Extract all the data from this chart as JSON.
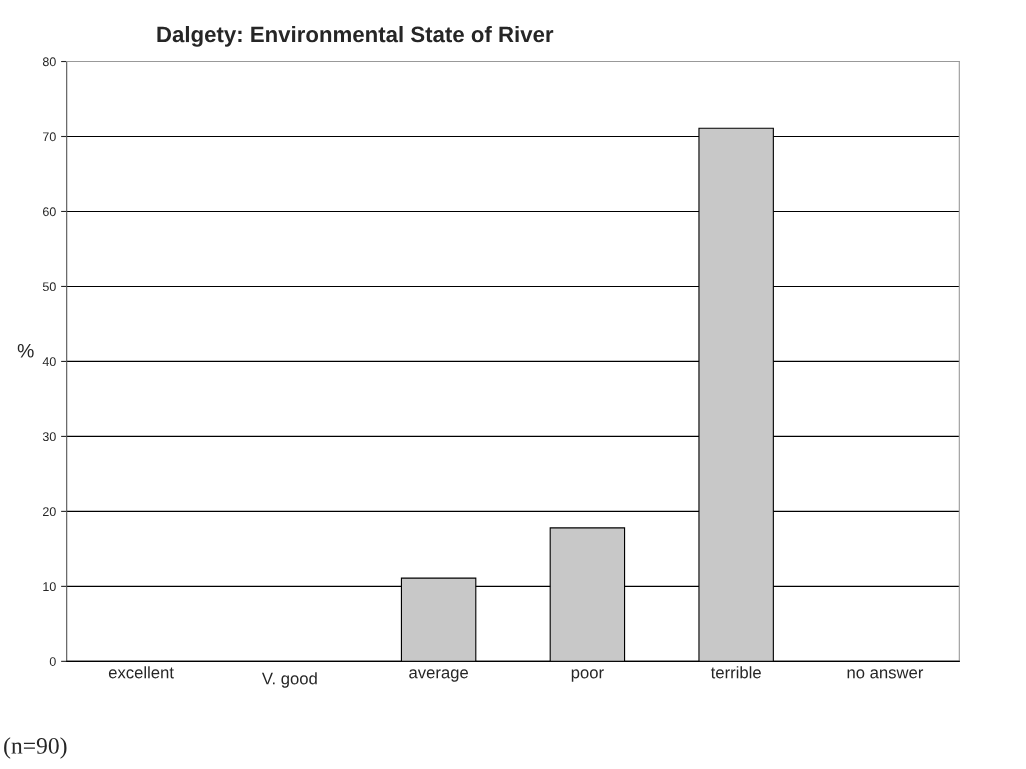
{
  "chart_data": {
    "type": "bar",
    "title": "Dalgety: Environmental State of River",
    "ylabel": "%",
    "categories": [
      "excellent",
      "V. good",
      "average",
      "poor",
      "terrible",
      "no answer"
    ],
    "values": [
      0,
      0,
      11.1,
      17.8,
      71.1,
      0
    ],
    "color": "#c8c8c8",
    "ylim": [
      0,
      80
    ],
    "yticks": [
      0,
      10,
      20,
      30,
      40,
      50,
      60,
      70,
      80
    ],
    "grid": "y",
    "annotations": [
      "(n=90)"
    ]
  }
}
